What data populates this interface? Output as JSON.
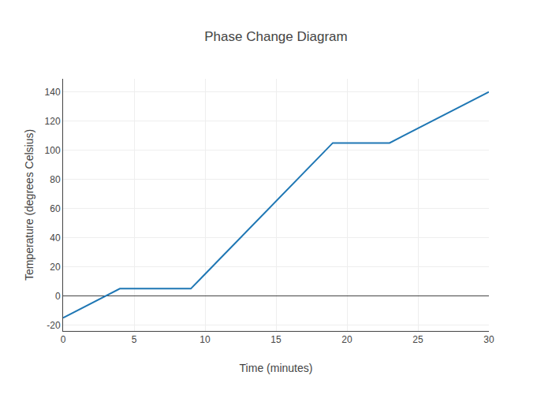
{
  "chart_data": {
    "type": "line",
    "title": "Phase Change Diagram",
    "x_label": "Time (minutes)",
    "y_label": "Temperature (degrees Celsius)",
    "x": [
      0,
      4,
      9,
      19,
      23,
      30
    ],
    "values": [
      -15,
      5,
      5,
      105,
      105,
      140
    ],
    "color": "#1f77b4",
    "xlim": [
      0,
      30
    ],
    "xticks": [
      0,
      5,
      10,
      15,
      20,
      25,
      30
    ],
    "ylim": [
      -24,
      149
    ],
    "yticks": [
      -20,
      0,
      20,
      40,
      60,
      80,
      100,
      120,
      140
    ],
    "grid": true
  }
}
